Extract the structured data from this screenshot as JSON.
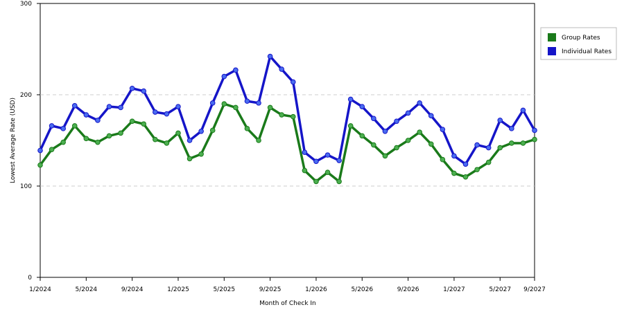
{
  "chart_data": {
    "type": "line",
    "x_label": "Month of Check In",
    "y_label": "Lowest Average Rate (USD)",
    "categories": [
      "1/2024",
      null,
      null,
      null,
      "5/2024",
      null,
      null,
      null,
      "9/2024",
      null,
      null,
      null,
      "1/2025",
      null,
      null,
      null,
      "5/2025",
      null,
      null,
      null,
      "9/2025",
      null,
      null,
      null,
      "1/2026",
      null,
      null,
      null,
      "5/2026",
      null,
      null,
      null,
      "9/2026",
      null,
      null,
      null,
      "1/2027",
      null,
      null,
      null,
      "5/2027",
      null,
      null,
      "9/2027"
    ],
    "series": [
      {
        "name": "Group Rates",
        "color": "#1a7a1a",
        "marker": "#4caf50",
        "values": [
          123,
          140,
          148,
          166,
          152,
          148,
          155,
          158,
          171,
          168,
          151,
          147,
          158,
          130,
          135,
          161,
          190,
          186,
          163,
          150,
          186,
          178,
          176,
          117,
          105,
          115,
          105,
          166,
          155,
          145,
          133,
          142,
          150,
          159,
          146,
          129,
          114,
          110,
          118,
          126,
          142,
          147,
          147,
          151
        ]
      },
      {
        "name": "Individual Rates",
        "color": "#1515c8",
        "marker": "#4a6cf0",
        "values": [
          139,
          166,
          163,
          188,
          178,
          172,
          187,
          186,
          207,
          204,
          181,
          179,
          187,
          150,
          160,
          191,
          220,
          227,
          193,
          191,
          242,
          228,
          214,
          137,
          127,
          134,
          128,
          195,
          187,
          174,
          160,
          171,
          180,
          191,
          177,
          162,
          133,
          124,
          145,
          142,
          172,
          163,
          183,
          161
        ]
      }
    ],
    "ylim": [
      0,
      300
    ],
    "yticks": [
      0,
      100,
      200,
      300
    ],
    "grid": true
  }
}
